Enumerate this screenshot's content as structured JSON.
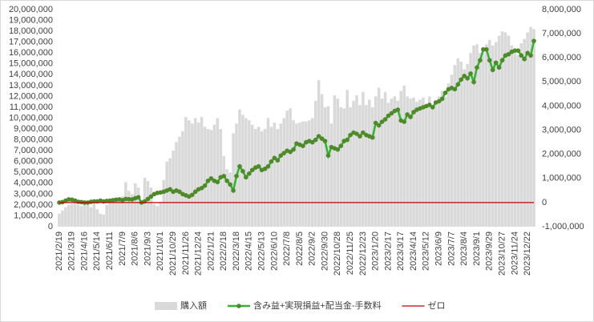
{
  "chart_data": {
    "type": "combo",
    "categories": [
      "2021/2/19",
      null,
      null,
      null,
      "2021/3/19",
      null,
      null,
      null,
      "2021/4/16",
      null,
      null,
      null,
      "2021/5/14",
      null,
      null,
      null,
      "2021/6/11",
      null,
      null,
      null,
      "2021/7/9",
      null,
      null,
      null,
      "2021/8/6",
      null,
      null,
      null,
      "2021/9/3",
      null,
      null,
      null,
      "2021/10/1",
      null,
      null,
      null,
      "2021/10/29",
      null,
      null,
      null,
      "2021/11/26",
      null,
      null,
      null,
      "2021/12/24",
      null,
      null,
      null,
      "2022/1/21",
      null,
      null,
      null,
      "2022/2/18",
      null,
      null,
      null,
      "2022/3/18",
      null,
      null,
      null,
      "2022/4/15",
      null,
      null,
      null,
      "2022/5/13",
      null,
      null,
      null,
      "2022/6/10",
      null,
      null,
      null,
      "2022/7/8",
      null,
      null,
      null,
      "2022/8/5",
      null,
      null,
      null,
      "2022/9/2",
      null,
      null,
      null,
      "2022/9/30",
      null,
      null,
      null,
      "2022/10/28",
      null,
      null,
      null,
      "2022/11/25",
      null,
      null,
      null,
      "2022/12/23",
      null,
      null,
      null,
      "2023/1/20",
      null,
      null,
      null,
      "2023/2/17",
      null,
      null,
      null,
      "2023/3/17",
      null,
      null,
      null,
      "2023/4/14",
      null,
      null,
      null,
      "2023/5/12",
      null,
      null,
      null,
      "2023/6/9",
      null,
      null,
      null,
      "2023/7/7",
      null,
      null,
      null,
      "2023/8/4",
      null,
      null,
      null,
      "2023/9/1",
      null,
      null,
      null,
      "2023/9/29",
      null,
      null,
      null,
      "2023/10/27",
      null,
      null,
      null,
      "2023/11/24",
      null,
      null,
      null,
      "2023/12/22",
      null,
      null
    ],
    "series": [
      {
        "name": "購入額",
        "type": "bar",
        "color": "#d9d9d9",
        "axis": "y",
        "values": [
          1200000,
          1500000,
          1800000,
          2000000,
          2100000,
          2300000,
          2000000,
          1900000,
          2200000,
          2000000,
          1800000,
          2100000,
          1600000,
          1200000,
          1100000,
          2000000,
          2300000,
          2500000,
          2700000,
          2600000,
          2800000,
          4100000,
          3300000,
          3000000,
          4000000,
          3600000,
          2000000,
          4500000,
          4200000,
          3600000,
          2100000,
          1900000,
          2300000,
          4300000,
          6000000,
          6300000,
          7000000,
          7800000,
          8300000,
          8800000,
          10100000,
          9800000,
          9500000,
          10000000,
          9600000,
          10100000,
          9200000,
          9000000,
          8900000,
          9400000,
          10000000,
          9000000,
          6500000,
          5300000,
          5000000,
          8600000,
          9500000,
          10800000,
          10300000,
          10000000,
          9800000,
          9400000,
          9000000,
          9200000,
          8800000,
          9000000,
          10000000,
          9200000,
          9600000,
          9000000,
          9500000,
          10000000,
          10700000,
          10900000,
          9800000,
          9500000,
          9600000,
          9700000,
          9700000,
          9800000,
          10000000,
          11600000,
          13500000,
          12200000,
          11000000,
          11100000,
          9500000,
          12100000,
          11800000,
          11000000,
          10900000,
          12600000,
          11000000,
          11600000,
          12100000,
          11200000,
          12400000,
          11200000,
          11700000,
          11000000,
          12000000,
          12800000,
          11800000,
          12400000,
          11400000,
          11800000,
          12000000,
          11600000,
          12500000,
          13000000,
          12000000,
          11800000,
          11900000,
          11500000,
          11700000,
          11900000,
          11200000,
          12000000,
          10900000,
          11500000,
          12000000,
          12500000,
          12000000,
          13200000,
          14000000,
          14900000,
          15500000,
          15200000,
          14500000,
          15000000,
          16000000,
          16700000,
          16800000,
          16000000,
          16500000,
          16800000,
          17200000,
          16700000,
          17000000,
          17600000,
          18000000,
          17900000,
          17600000,
          16700000,
          16000000,
          15800000,
          16900000,
          17300000,
          17900000,
          18400000,
          18200000
        ]
      },
      {
        "name": "含み益+実現損益+配当金-手数料",
        "type": "line",
        "color": "#33b233",
        "marker_color": "#4f8a2a",
        "axis": "y2",
        "values": [
          0,
          20000,
          80000,
          130000,
          120000,
          80000,
          30000,
          20000,
          0,
          0,
          30000,
          50000,
          50000,
          80000,
          50000,
          70000,
          80000,
          100000,
          120000,
          130000,
          100000,
          150000,
          140000,
          130000,
          180000,
          220000,
          0,
          50000,
          150000,
          250000,
          350000,
          400000,
          420000,
          450000,
          500000,
          550000,
          450000,
          500000,
          450000,
          350000,
          300000,
          250000,
          320000,
          450000,
          550000,
          600000,
          700000,
          900000,
          1000000,
          900000,
          850000,
          1050000,
          1100000,
          900000,
          750000,
          500000,
          1100000,
          1500000,
          1300000,
          1050000,
          1200000,
          1350000,
          1450000,
          1500000,
          1350000,
          1400000,
          1500000,
          1700000,
          1850000,
          1750000,
          1950000,
          2050000,
          2150000,
          2100000,
          2200000,
          2450000,
          2400000,
          2350000,
          2500000,
          2550000,
          2500000,
          2600000,
          2750000,
          2650000,
          2550000,
          1950000,
          2300000,
          2250000,
          2200000,
          2350000,
          2550000,
          2600000,
          2800000,
          2900000,
          2850000,
          2750000,
          2900000,
          2800000,
          2750000,
          2700000,
          3300000,
          3200000,
          3350000,
          3450000,
          3600000,
          3700000,
          3800000,
          3850000,
          3400000,
          3350000,
          3650000,
          3550000,
          3750000,
          3850000,
          3900000,
          3950000,
          4000000,
          4050000,
          3950000,
          4150000,
          4200000,
          4300000,
          4550000,
          4700000,
          4750000,
          4700000,
          4900000,
          5100000,
          5250000,
          5150000,
          5350000,
          5000000,
          5600000,
          5900000,
          6350000,
          6350000,
          5900000,
          5500000,
          5800000,
          5600000,
          5900000,
          6100000,
          6150000,
          6250000,
          6300000,
          6300000,
          6100000,
          5950000,
          6200000,
          6100000,
          6700000
        ]
      },
      {
        "name": "ゼロ",
        "type": "line",
        "color": "#c00000",
        "axis": "y2",
        "values": [
          0,
          0,
          0,
          0,
          0,
          0,
          0,
          0,
          0,
          0,
          0,
          0,
          0,
          0,
          0,
          0,
          0,
          0,
          0,
          0,
          0,
          0,
          0,
          0,
          0,
          0,
          0,
          0,
          0,
          0,
          0,
          0,
          0,
          0,
          0,
          0,
          0,
          0,
          0,
          0,
          0,
          0,
          0,
          0,
          0,
          0,
          0,
          0,
          0,
          0,
          0,
          0,
          0,
          0,
          0,
          0,
          0,
          0,
          0,
          0,
          0,
          0,
          0,
          0,
          0,
          0,
          0,
          0,
          0,
          0,
          0,
          0,
          0,
          0,
          0,
          0,
          0,
          0,
          0,
          0,
          0,
          0,
          0,
          0,
          0,
          0,
          0,
          0,
          0,
          0,
          0,
          0,
          0,
          0,
          0,
          0,
          0,
          0,
          0,
          0,
          0,
          0,
          0,
          0,
          0,
          0,
          0,
          0,
          0,
          0,
          0,
          0,
          0,
          0,
          0,
          0,
          0,
          0,
          0,
          0,
          0,
          0,
          0,
          0,
          0,
          0,
          0,
          0,
          0,
          0,
          0,
          0,
          0,
          0,
          0,
          0,
          0,
          0,
          0,
          0,
          0,
          0,
          0,
          0,
          0,
          0,
          0,
          0,
          0,
          0,
          0
        ]
      }
    ],
    "ylim": [
      0,
      20000000
    ],
    "yticks": [
      {
        "value": 0,
        "label": "0"
      },
      {
        "value": 1000000,
        "label": "1,000,000"
      },
      {
        "value": 2000000,
        "label": "2,000,000"
      },
      {
        "value": 3000000,
        "label": "3,000,000"
      },
      {
        "value": 4000000,
        "label": "4,000,000"
      },
      {
        "value": 5000000,
        "label": "5,000,000"
      },
      {
        "value": 6000000,
        "label": "6,000,000"
      },
      {
        "value": 7000000,
        "label": "7,000,000"
      },
      {
        "value": 8000000,
        "label": "8,000,000"
      },
      {
        "value": 9000000,
        "label": "9,000,000"
      },
      {
        "value": 10000000,
        "label": "10,000,000"
      },
      {
        "value": 11000000,
        "label": "11,000,000"
      },
      {
        "value": 12000000,
        "label": "12,000,000"
      },
      {
        "value": 13000000,
        "label": "13,000,000"
      },
      {
        "value": 14000000,
        "label": "14,000,000"
      },
      {
        "value": 15000000,
        "label": "15,000,000"
      },
      {
        "value": 16000000,
        "label": "16,000,000"
      },
      {
        "value": 17000000,
        "label": "17,000,000"
      },
      {
        "value": 18000000,
        "label": "18,000,000"
      },
      {
        "value": 19000000,
        "label": "19,000,000"
      },
      {
        "value": 20000000,
        "label": "20,000,000"
      }
    ],
    "y2lim": [
      -1000000,
      8000000
    ],
    "y2ticks": [
      {
        "value": -1000000,
        "label": "-1,000,000"
      },
      0,
      {
        "value": 1000000,
        "label": "1,000,000"
      },
      {
        "value": 2000000,
        "label": "2,000,000"
      },
      {
        "value": 3000000,
        "label": "3,000,000"
      },
      {
        "value": 4000000,
        "label": "4,000,000"
      },
      {
        "value": 5000000,
        "label": "5,000,000"
      },
      {
        "value": 6000000,
        "label": "6,000,000"
      },
      {
        "value": 7000000,
        "label": "7,000,000"
      },
      {
        "value": 8000000,
        "label": "8,000,000"
      }
    ],
    "grid": false,
    "legend": "bottom"
  }
}
